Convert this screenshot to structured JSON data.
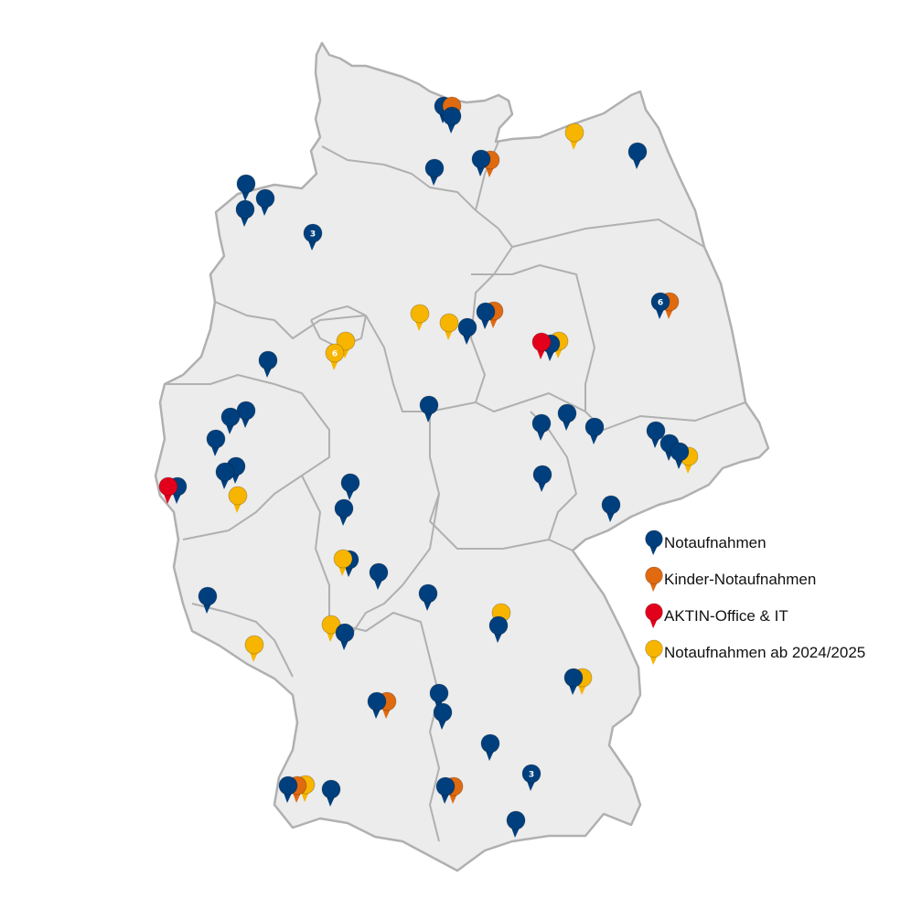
{
  "map": {
    "country": "Germany",
    "land_color": "#ececec",
    "border_color": "#b0b0b0"
  },
  "legend": {
    "items": [
      {
        "label": "Notaufnahmen",
        "color": "#003f7d",
        "icon": "map-pin-icon"
      },
      {
        "label": "Kinder-Notaufnahmen",
        "color": "#e06a10",
        "icon": "map-pin-icon"
      },
      {
        "label": "AKTIN-Office & IT",
        "color": "#e3001b",
        "icon": "map-pin-icon"
      },
      {
        "label": "Notaufnahmen ab 2024/2025",
        "color": "#f7b500",
        "icon": "map-pin-icon"
      }
    ]
  },
  "pin_counts": [
    "3",
    "6",
    "6",
    "3"
  ]
}
